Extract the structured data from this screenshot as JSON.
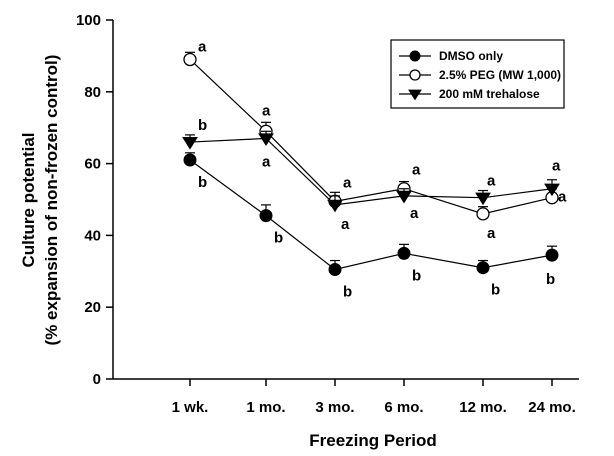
{
  "chart_data": {
    "type": "line",
    "xlabel": "Freezing Period",
    "ylabel_line1": "Culture potential",
    "ylabel_line2": "(% expansion of non-frozen control)",
    "categories": [
      "1 wk.",
      "1 mo.",
      "3 mo.",
      "6 mo.",
      "12 mo.",
      "24 mo."
    ],
    "ylim": [
      0,
      100
    ],
    "yticks": [
      "0",
      "20",
      "40",
      "60",
      "80",
      "100"
    ],
    "grid": false,
    "legend_position": "top-right",
    "series": [
      {
        "name": "DMSO only",
        "marker": "filled-circle",
        "color": "#000000",
        "values": [
          61,
          45.5,
          30.5,
          35,
          31,
          34.5
        ],
        "errors": [
          2,
          3,
          2.5,
          2.5,
          2,
          2.5
        ],
        "letters": [
          "b",
          "b",
          "b",
          "b",
          "b",
          "b"
        ]
      },
      {
        "name": "2.5% PEG (MW 1,000)",
        "marker": "open-circle",
        "color": "#000000",
        "values": [
          89,
          69,
          49.5,
          53,
          46,
          50.5
        ],
        "errors": [
          2,
          2.5,
          2.5,
          2,
          2,
          2.5
        ],
        "letters": [
          "a",
          "a",
          "a",
          "a",
          "a",
          "a"
        ]
      },
      {
        "name": "200 mM trehalose",
        "marker": "filled-triangle-down",
        "color": "#000000",
        "values": [
          66,
          67,
          48.5,
          51,
          50.5,
          53
        ],
        "errors": [
          2,
          2,
          2.5,
          2,
          2,
          2.5
        ],
        "letters": [
          "b",
          "a",
          "a",
          "a",
          "a",
          "a"
        ]
      }
    ]
  }
}
